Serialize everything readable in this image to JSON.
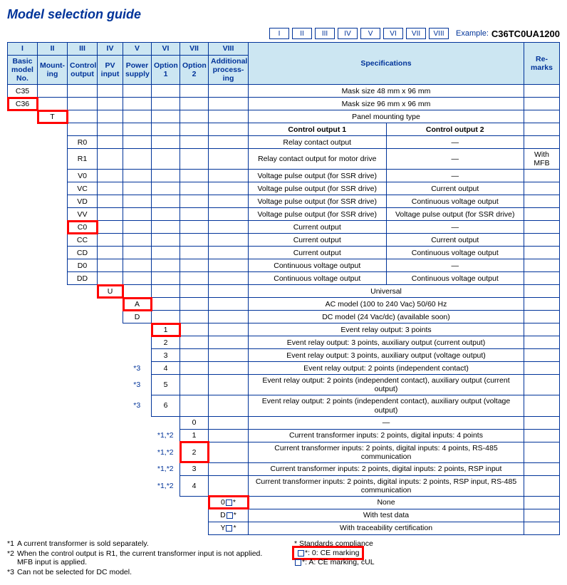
{
  "title": "Model selection guide",
  "exampleBoxes": [
    "I",
    "II",
    "III",
    "IV",
    "V",
    "VI",
    "VII",
    "VIII"
  ],
  "exampleLabel": "Example:",
  "exampleValue": "C36TC0UA1200",
  "headers": {
    "roman": [
      "I",
      "II",
      "III",
      "IV",
      "V",
      "VI",
      "VII",
      "VIII"
    ],
    "names": [
      "Basic model No.",
      "Mount-ing",
      "Control output",
      "PV input",
      "Power supply",
      "Option 1",
      "Option 2",
      "Additional process-ing"
    ],
    "spec": "Specifications",
    "remarks": "Re-marks"
  },
  "rows": {
    "c35": {
      "code": "C35",
      "spec": "Mask size 48 mm x 96 mm"
    },
    "c36": {
      "code": "C36",
      "spec": "Mask size 96 mm x 96 mm"
    },
    "t": {
      "code": "T",
      "spec": "Panel mounting type"
    },
    "co1": "Control output 1",
    "co2": "Control output 2",
    "r0": {
      "code": "R0",
      "s1": "Relay contact output",
      "s2": "—"
    },
    "r1": {
      "code": "R1",
      "s1": "Relay contact output for motor drive",
      "s2": "—",
      "rem": "With MFB"
    },
    "v0": {
      "code": "V0",
      "s1": "Voltage pulse output (for SSR drive)",
      "s2": "—"
    },
    "vc": {
      "code": "VC",
      "s1": "Voltage pulse output (for SSR drive)",
      "s2": "Current output"
    },
    "vd": {
      "code": "VD",
      "s1": "Voltage pulse output (for SSR drive)",
      "s2": "Continuous voltage output"
    },
    "vv": {
      "code": "VV",
      "s1": "Voltage pulse output (for SSR drive)",
      "s2": "Voltage pulse output (for SSR drive)"
    },
    "c0": {
      "code": "C0",
      "s1": "Current output",
      "s2": "—"
    },
    "cc": {
      "code": "CC",
      "s1": "Current output",
      "s2": "Current output"
    },
    "cd": {
      "code": "CD",
      "s1": "Current output",
      "s2": "Continuous voltage output"
    },
    "d0": {
      "code": "D0",
      "s1": "Continuous voltage output",
      "s2": "—"
    },
    "dd": {
      "code": "DD",
      "s1": "Continuous voltage output",
      "s2": "Continuous voltage output"
    },
    "u": {
      "code": "U",
      "spec": "Universal"
    },
    "a": {
      "code": "A",
      "spec": "AC model (100 to 240 Vac) 50/60 Hz"
    },
    "d": {
      "code": "D",
      "spec": "DC model (24 Vac/dc) (available soon)"
    },
    "o1_1": {
      "code": "1",
      "spec": "Event relay output: 3 points"
    },
    "o1_2": {
      "code": "2",
      "spec": "Event relay output: 3 points, auxiliary output (current output)"
    },
    "o1_3": {
      "code": "3",
      "spec": "Event relay output: 3 points, auxiliary output (voltage output)"
    },
    "o1_4": {
      "code": "4",
      "spec": "Event relay output: 2 points (independent contact)",
      "fn": "*3"
    },
    "o1_5": {
      "code": "5",
      "spec": "Event relay output: 2 points (independent contact),\nauxiliary output (current output)",
      "fn": "*3"
    },
    "o1_6": {
      "code": "6",
      "spec": "Event relay output: 2 points (independent contact),\nauxiliary output (voltage output)",
      "fn": "*3"
    },
    "o2_0": {
      "code": "0",
      "spec": "—"
    },
    "o2_1": {
      "code": "1",
      "spec": "Current transformer inputs: 2 points, digital inputs: 4 points",
      "fn": "*1,*2"
    },
    "o2_2": {
      "code": "2",
      "spec": "Current transformer inputs: 2 points, digital inputs: 4 points,\nRS-485 communication",
      "fn": "*1,*2"
    },
    "o2_3": {
      "code": "3",
      "spec": "Current transformer inputs: 2 points, digital inputs: 2 points, RSP input",
      "fn": "*1,*2"
    },
    "o2_4": {
      "code": "4",
      "spec": "Current transformer inputs: 2 points, digital inputs: 2 points, RSP input,\nRS-485 communication",
      "fn": "*1,*2"
    },
    "ap_0": {
      "code": "0",
      "suffix": "*",
      "spec": "None"
    },
    "ap_d": {
      "code": "D",
      "suffix": "*",
      "spec": "With test data"
    },
    "ap_y": {
      "code": "Y",
      "suffix": "*",
      "spec": "With traceability certification"
    }
  },
  "footnotes": {
    "f1": "A current transformer is sold separately.",
    "f2": "When the control output is R1, the current transformer input is not applied. MFB input is applied.",
    "f3": "Can not be selected for DC model.",
    "stdTitle": "* Standards compliance",
    "std0": "*: 0: CE marking",
    "stdA": "*: A: CE marking, cUL"
  }
}
